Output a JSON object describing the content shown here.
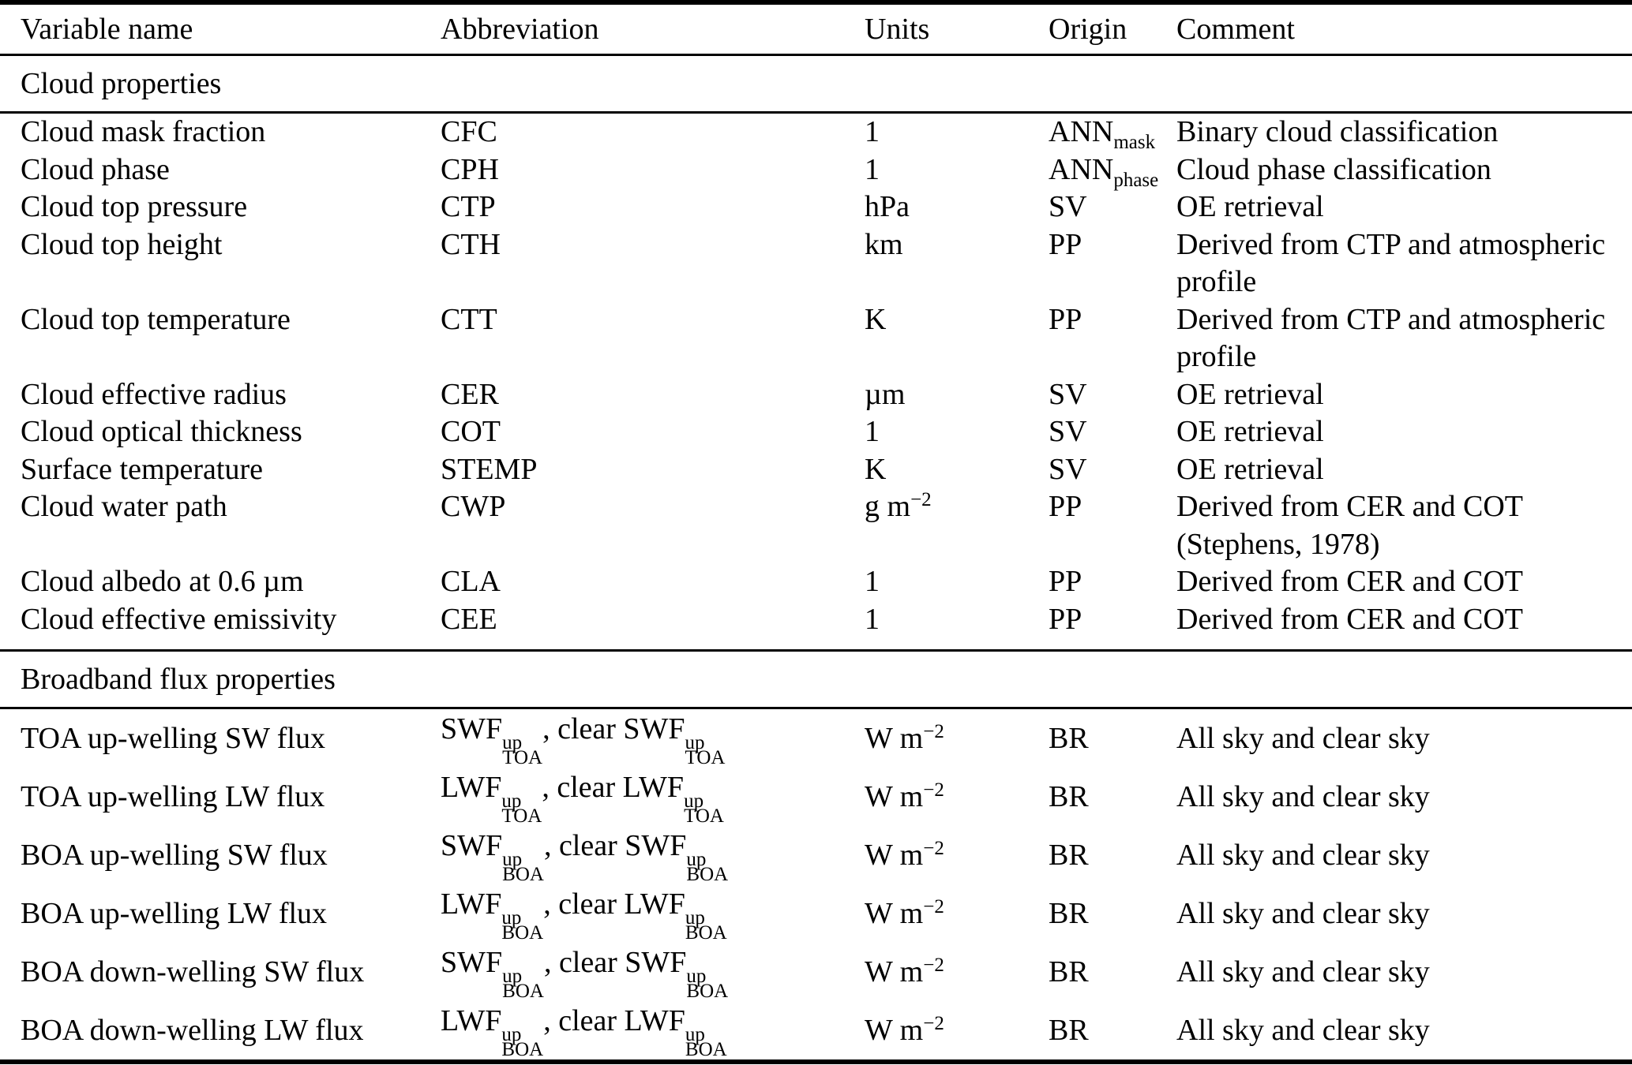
{
  "colors": {
    "background": "#ffffff",
    "text": "#000000",
    "rule": "#000000"
  },
  "table": {
    "headers": [
      "Variable name",
      "Abbreviation",
      "Units",
      "Origin",
      "Comment"
    ],
    "sections": [
      {
        "title": "Cloud properties",
        "rows": [
          {
            "name": "Cloud mask fraction",
            "abbr": [
              {
                "t": "CFC"
              }
            ],
            "units": [
              {
                "t": "1"
              }
            ],
            "origin": [
              {
                "t": "ANN"
              },
              {
                "sub": "mask"
              }
            ],
            "comment": [
              "Binary cloud classification"
            ]
          },
          {
            "name": "Cloud phase",
            "abbr": [
              {
                "t": "CPH"
              }
            ],
            "units": [
              {
                "t": "1"
              }
            ],
            "origin": [
              {
                "t": "ANN"
              },
              {
                "sub": "phase"
              }
            ],
            "comment": [
              "Cloud phase classification"
            ]
          },
          {
            "name": "Cloud top pressure",
            "abbr": [
              {
                "t": "CTP"
              }
            ],
            "units": [
              {
                "t": "hPa"
              }
            ],
            "origin": [
              {
                "t": "SV"
              }
            ],
            "comment": [
              "OE retrieval"
            ]
          },
          {
            "name": "Cloud top height",
            "abbr": [
              {
                "t": "CTH"
              }
            ],
            "units": [
              {
                "t": "km"
              }
            ],
            "origin": [
              {
                "t": "PP"
              }
            ],
            "comment": [
              "Derived from CTP and atmospheric",
              "profile"
            ]
          },
          {
            "name": "Cloud top temperature",
            "abbr": [
              {
                "t": "CTT"
              }
            ],
            "units": [
              {
                "t": "K"
              }
            ],
            "origin": [
              {
                "t": "PP"
              }
            ],
            "comment": [
              "Derived from CTP and atmospheric",
              "profile"
            ]
          },
          {
            "name": "Cloud effective radius",
            "abbr": [
              {
                "t": "CER"
              }
            ],
            "units": [
              {
                "t": "µm"
              }
            ],
            "origin": [
              {
                "t": "SV"
              }
            ],
            "comment": [
              "OE retrieval"
            ]
          },
          {
            "name": "Cloud optical thickness",
            "abbr": [
              {
                "t": "COT"
              }
            ],
            "units": [
              {
                "t": "1"
              }
            ],
            "origin": [
              {
                "t": "SV"
              }
            ],
            "comment": [
              "OE retrieval"
            ]
          },
          {
            "name": "Surface temperature",
            "abbr": [
              {
                "t": "STEMP"
              }
            ],
            "units": [
              {
                "t": "K"
              }
            ],
            "origin": [
              {
                "t": "SV"
              }
            ],
            "comment": [
              "OE retrieval"
            ]
          },
          {
            "name": "Cloud water path",
            "abbr": [
              {
                "t": "CWP"
              }
            ],
            "units": [
              {
                "t": "g m"
              },
              {
                "sup": "−2"
              }
            ],
            "origin": [
              {
                "t": "PP"
              }
            ],
            "comment": [
              "Derived from CER and COT",
              "(Stephens, 1978)"
            ]
          },
          {
            "name": "Cloud albedo at 0.6 µm",
            "abbr": [
              {
                "t": "CLA"
              }
            ],
            "units": [
              {
                "t": "1"
              }
            ],
            "origin": [
              {
                "t": "PP"
              }
            ],
            "comment": [
              "Derived from CER and COT"
            ]
          },
          {
            "name": "Cloud effective emissivity",
            "abbr": [
              {
                "t": "CEE"
              }
            ],
            "units": [
              {
                "t": "1"
              }
            ],
            "origin": [
              {
                "t": "PP"
              }
            ],
            "comment": [
              "Derived from CER and COT"
            ]
          }
        ]
      },
      {
        "title": "Broadband flux properties",
        "rows": [
          {
            "name": "TOA up-welling SW flux",
            "abbr": [
              {
                "t": "SWF"
              },
              {
                "stack": [
                  "up",
                  "TOA"
                ]
              },
              {
                "t": ", clear "
              },
              {
                "t": "SWF"
              },
              {
                "stack": [
                  "up",
                  "TOA"
                ]
              }
            ],
            "units": [
              {
                "t": "W m"
              },
              {
                "sup": "−2"
              }
            ],
            "origin": [
              {
                "t": "BR"
              }
            ],
            "comment": [
              "All sky and clear sky"
            ]
          },
          {
            "name": "TOA up-welling LW flux",
            "abbr": [
              {
                "t": "LWF"
              },
              {
                "stack": [
                  "up",
                  "TOA"
                ]
              },
              {
                "t": ", clear "
              },
              {
                "t": "LWF"
              },
              {
                "stack": [
                  "up",
                  "TOA"
                ]
              }
            ],
            "units": [
              {
                "t": "W m"
              },
              {
                "sup": "−2"
              }
            ],
            "origin": [
              {
                "t": "BR"
              }
            ],
            "comment": [
              "All sky and clear sky"
            ]
          },
          {
            "name": "BOA up-welling SW flux",
            "abbr": [
              {
                "t": "SWF"
              },
              {
                "stack": [
                  "up",
                  "BOA"
                ]
              },
              {
                "t": ", clear "
              },
              {
                "t": "SWF"
              },
              {
                "stack": [
                  "up",
                  "BOA"
                ]
              }
            ],
            "units": [
              {
                "t": "W m"
              },
              {
                "sup": "−2"
              }
            ],
            "origin": [
              {
                "t": "BR"
              }
            ],
            "comment": [
              "All sky and clear sky"
            ]
          },
          {
            "name": "BOA up-welling LW flux",
            "abbr": [
              {
                "t": "LWF"
              },
              {
                "stack": [
                  "up",
                  "BOA"
                ]
              },
              {
                "t": ", clear "
              },
              {
                "t": "LWF"
              },
              {
                "stack": [
                  "up",
                  "BOA"
                ]
              }
            ],
            "units": [
              {
                "t": "W m"
              },
              {
                "sup": "−2"
              }
            ],
            "origin": [
              {
                "t": "BR"
              }
            ],
            "comment": [
              "All sky and clear sky"
            ]
          },
          {
            "name": "BOA down-welling SW flux",
            "abbr": [
              {
                "t": "SWF"
              },
              {
                "stack": [
                  "up",
                  "BOA"
                ]
              },
              {
                "t": ", clear "
              },
              {
                "t": "SWF"
              },
              {
                "stack": [
                  "up",
                  "BOA"
                ]
              }
            ],
            "units": [
              {
                "t": "W m"
              },
              {
                "sup": "−2"
              }
            ],
            "origin": [
              {
                "t": "BR"
              }
            ],
            "comment": [
              "All sky and clear sky"
            ]
          },
          {
            "name": "BOA down-welling LW flux",
            "abbr": [
              {
                "t": "LWF"
              },
              {
                "stack": [
                  "up",
                  "BOA"
                ]
              },
              {
                "t": ", clear "
              },
              {
                "t": "LWF"
              },
              {
                "stack": [
                  "up",
                  "BOA"
                ]
              }
            ],
            "units": [
              {
                "t": "W m"
              },
              {
                "sup": "−2"
              }
            ],
            "origin": [
              {
                "t": "BR"
              }
            ],
            "comment": [
              "All sky and clear sky"
            ]
          }
        ]
      }
    ]
  }
}
